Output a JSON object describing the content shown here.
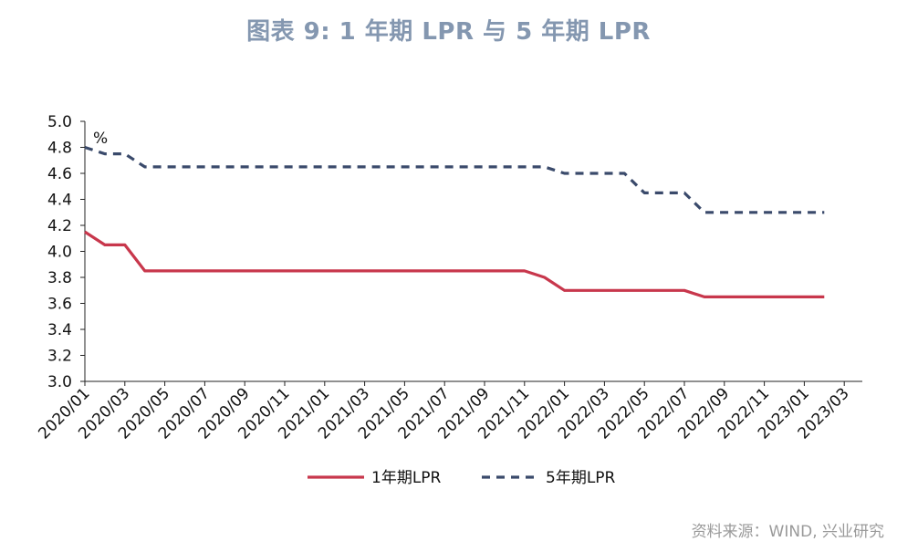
{
  "header": {
    "title": "图表 9:  1 年期 LPR 与 5 年期 LPR"
  },
  "footer": {
    "source": "资料来源：WIND, 兴业研究"
  },
  "chart_data": {
    "type": "line",
    "title": "图表 9:  1 年期 LPR 与 5 年期 LPR",
    "unit_label": "%",
    "ylim": [
      3.0,
      5.0
    ],
    "yticks": [
      "3.0",
      "3.2",
      "3.4",
      "3.6",
      "3.8",
      "4.0",
      "4.2",
      "4.4",
      "4.6",
      "4.8",
      "5.0"
    ],
    "xticks": [
      "2020/01",
      "2020/03",
      "2020/05",
      "2020/07",
      "2020/09",
      "2020/11",
      "2021/01",
      "2021/03",
      "2021/05",
      "2021/07",
      "2021/09",
      "2021/11",
      "2022/01",
      "2022/03",
      "2022/05",
      "2022/07",
      "2022/09",
      "2022/11",
      "2023/01",
      "2023/03"
    ],
    "x": [
      "2020/01",
      "2020/02",
      "2020/03",
      "2020/04",
      "2020/05",
      "2020/06",
      "2020/07",
      "2020/08",
      "2020/09",
      "2020/10",
      "2020/11",
      "2020/12",
      "2021/01",
      "2021/02",
      "2021/03",
      "2021/04",
      "2021/05",
      "2021/06",
      "2021/07",
      "2021/08",
      "2021/09",
      "2021/10",
      "2021/11",
      "2021/12",
      "2022/01",
      "2022/02",
      "2022/03",
      "2022/04",
      "2022/05",
      "2022/06",
      "2022/07",
      "2022/08",
      "2022/09",
      "2022/10",
      "2022/11",
      "2022/12",
      "2023/01",
      "2023/02"
    ],
    "legend_position": "bottom",
    "grid": false,
    "series": [
      {
        "name": "1年期LPR",
        "color": "#c8374c",
        "style": "solid",
        "values": [
          4.15,
          4.05,
          4.05,
          3.85,
          3.85,
          3.85,
          3.85,
          3.85,
          3.85,
          3.85,
          3.85,
          3.85,
          3.85,
          3.85,
          3.85,
          3.85,
          3.85,
          3.85,
          3.85,
          3.85,
          3.85,
          3.85,
          3.85,
          3.8,
          3.7,
          3.7,
          3.7,
          3.7,
          3.7,
          3.7,
          3.7,
          3.65,
          3.65,
          3.65,
          3.65,
          3.65,
          3.65,
          3.65
        ]
      },
      {
        "name": "5年期LPR",
        "color": "#3a4a6b",
        "style": "dashed",
        "values": [
          4.8,
          4.75,
          4.75,
          4.65,
          4.65,
          4.65,
          4.65,
          4.65,
          4.65,
          4.65,
          4.65,
          4.65,
          4.65,
          4.65,
          4.65,
          4.65,
          4.65,
          4.65,
          4.65,
          4.65,
          4.65,
          4.65,
          4.65,
          4.65,
          4.6,
          4.6,
          4.6,
          4.6,
          4.45,
          4.45,
          4.45,
          4.3,
          4.3,
          4.3,
          4.3,
          4.3,
          4.3,
          4.3
        ]
      }
    ]
  }
}
